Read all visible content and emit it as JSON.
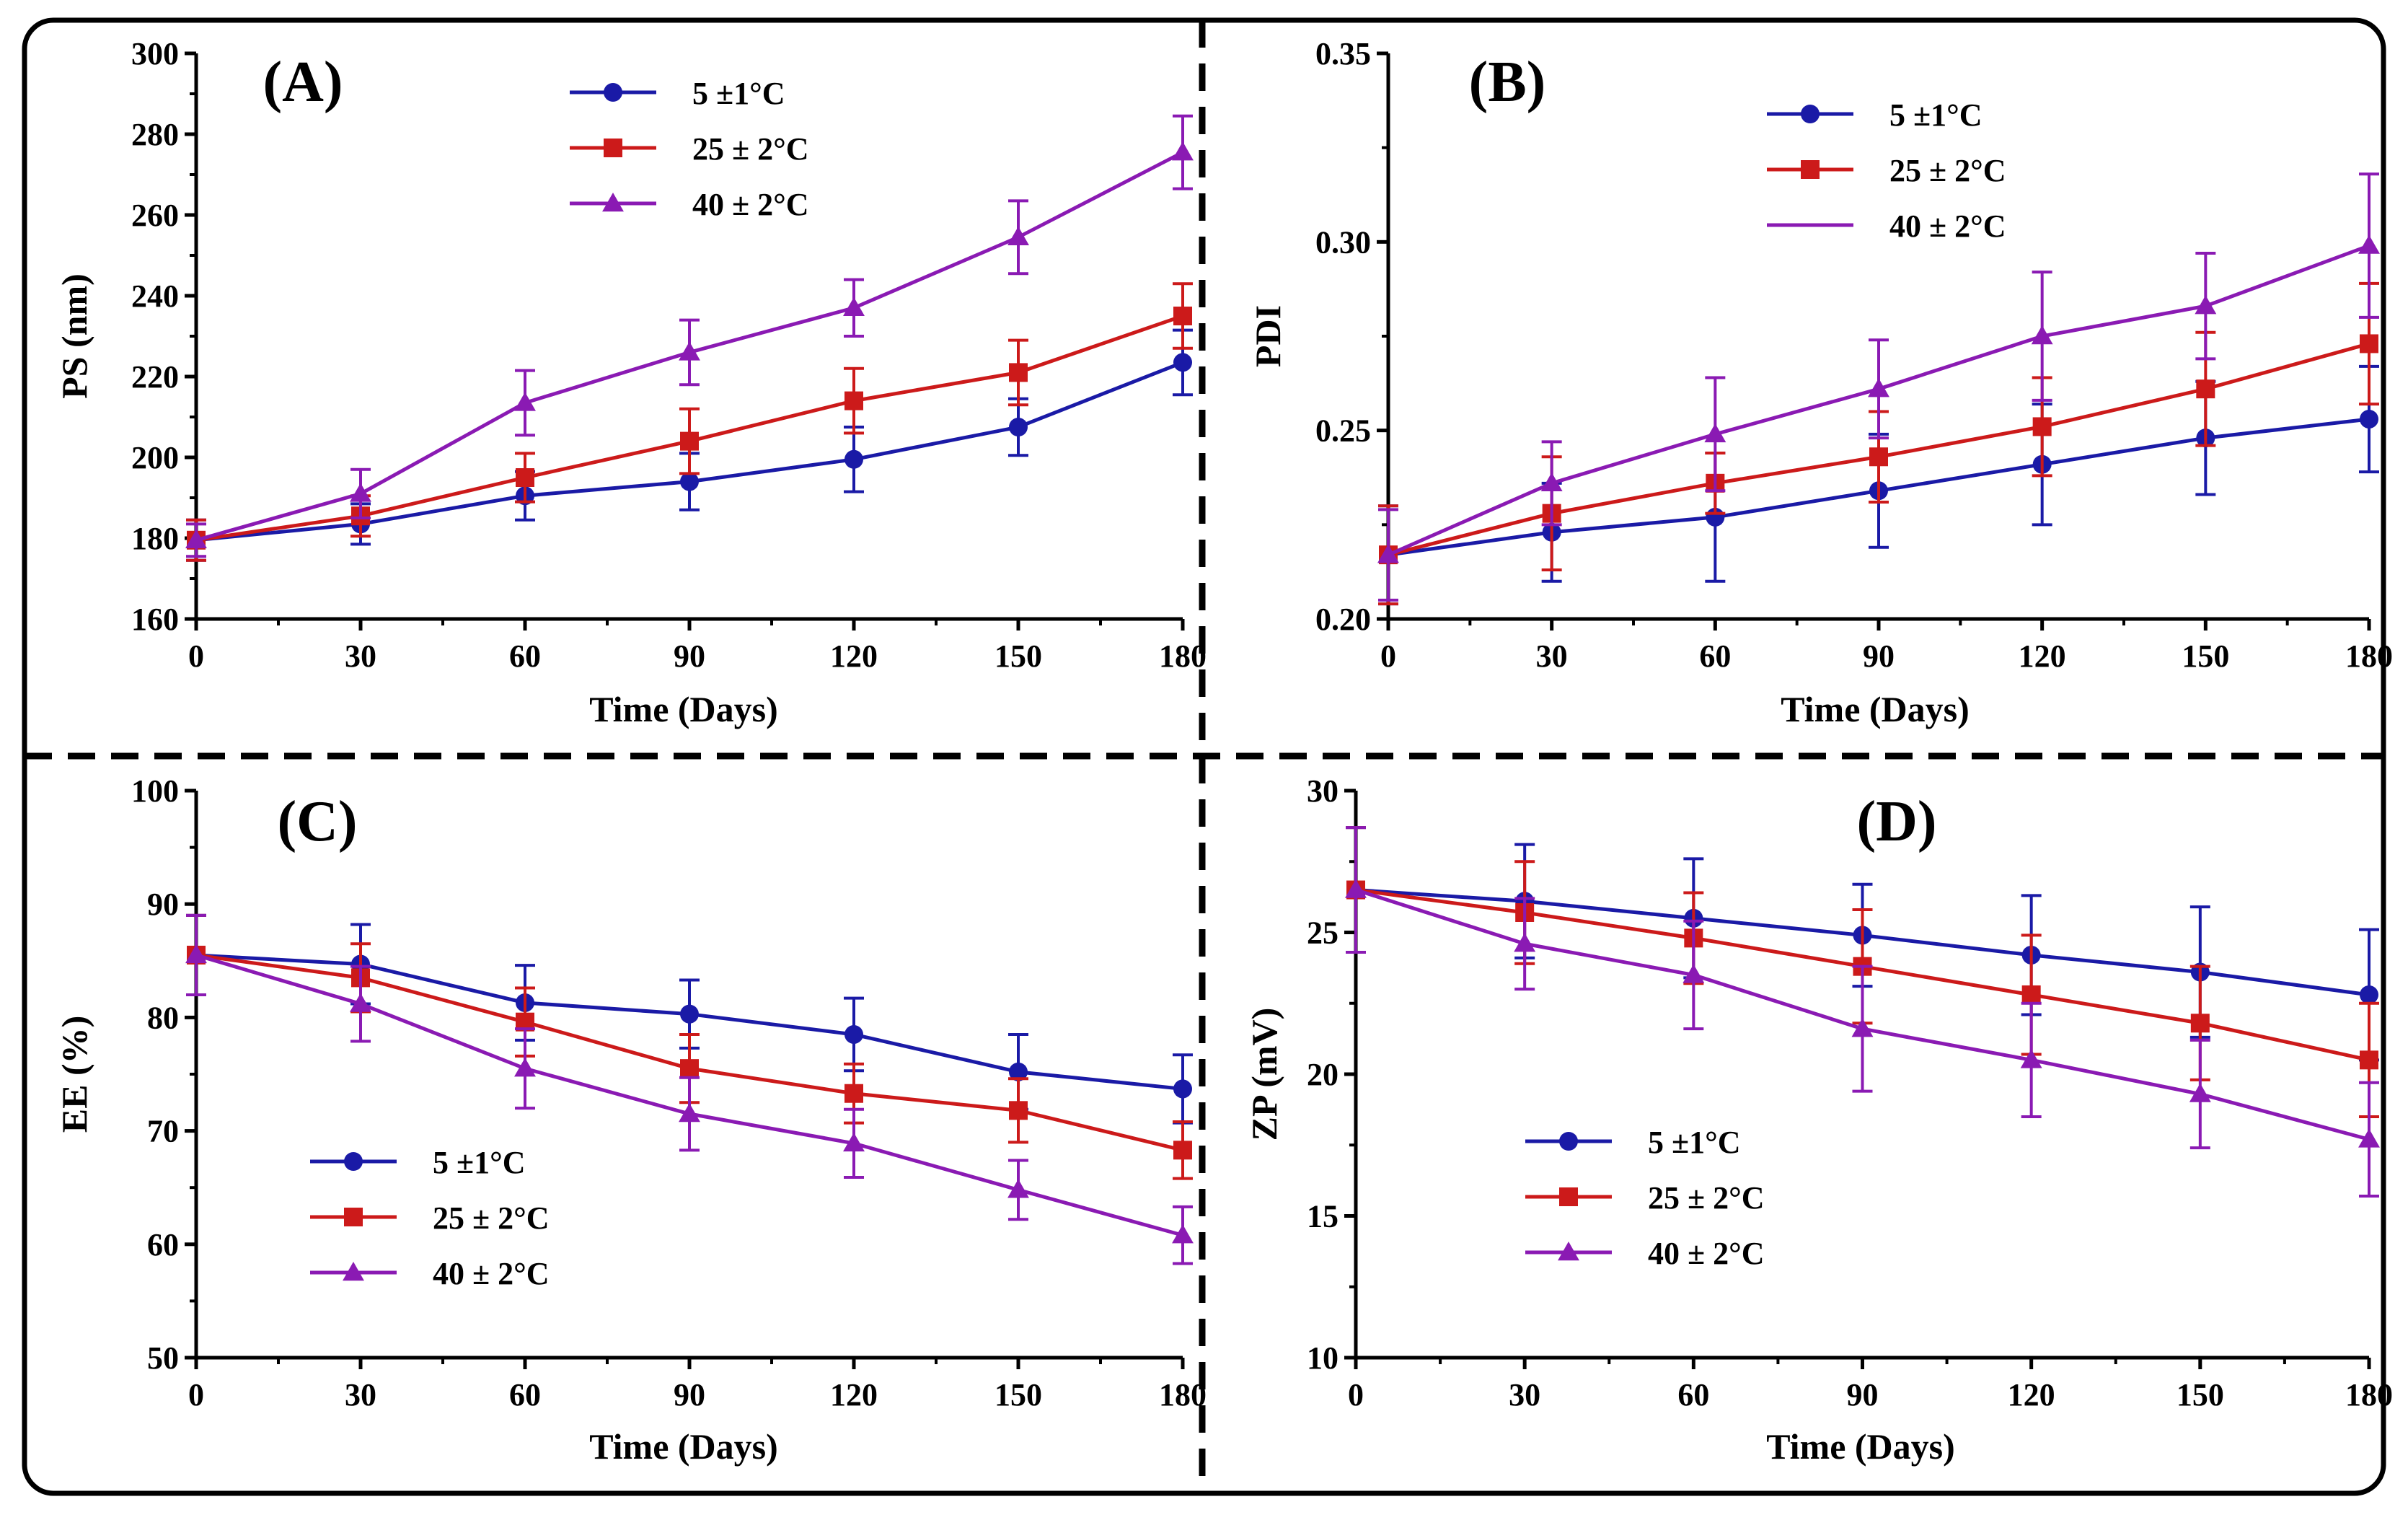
{
  "legend_labels": [
    "5 ±1°C",
    "25 ± 2°C",
    "40 ± 2°C"
  ],
  "colors": {
    "s5": "#1a1aa6",
    "s25": "#cc1a1a",
    "s40": "#8a1ab3",
    "frame": "#000000"
  },
  "chart_data": [
    {
      "type": "line",
      "panel_label": "(A)",
      "xlabel": "Time (Days)",
      "ylabel": "PS (nm)",
      "x": [
        0,
        30,
        60,
        90,
        120,
        150,
        180
      ],
      "xlim": [
        0,
        180
      ],
      "xticks": [
        0,
        30,
        60,
        90,
        120,
        150,
        180
      ],
      "ylim": [
        160,
        300
      ],
      "yticks": [
        160,
        180,
        200,
        220,
        240,
        260,
        280,
        300
      ],
      "legend_position": "top-center",
      "series": [
        {
          "name": "5 ±1°C",
          "marker": "circle",
          "values": [
            179.5,
            183.5,
            190.5,
            194,
            199.5,
            207.5,
            223.5
          ],
          "errors": [
            5,
            5,
            6,
            7,
            8,
            7,
            8
          ]
        },
        {
          "name": "25 ± 2°C",
          "marker": "square",
          "values": [
            179.5,
            185.5,
            195,
            204,
            214,
            221,
            235
          ],
          "errors": [
            5,
            5,
            6,
            8,
            8,
            8,
            8
          ]
        },
        {
          "name": "40 ± 2°C",
          "marker": "triangle",
          "values": [
            179.5,
            191,
            213.5,
            226,
            237,
            254.5,
            275.5
          ],
          "errors": [
            4,
            6,
            8,
            8,
            7,
            9,
            9
          ]
        }
      ]
    },
    {
      "type": "line",
      "panel_label": "(B)",
      "xlabel": "Time (Days)",
      "ylabel": "PDI",
      "x": [
        0,
        30,
        60,
        90,
        120,
        150,
        180
      ],
      "xlim": [
        0,
        180
      ],
      "xticks": [
        0,
        30,
        60,
        90,
        120,
        150,
        180
      ],
      "ylim": [
        0.2,
        0.35
      ],
      "yticks": [
        "0.20",
        "0.25",
        "0.30",
        "0.35"
      ],
      "legend_position": "top-center",
      "series": [
        {
          "name": "5 ±1°C",
          "marker": "circle",
          "values": [
            0.217,
            0.223,
            0.227,
            0.234,
            0.241,
            0.248,
            0.253
          ],
          "errors": [
            0.013,
            0.013,
            0.017,
            0.015,
            0.016,
            0.015,
            0.014
          ]
        },
        {
          "name": "25 ± 2°C",
          "marker": "square",
          "values": [
            0.217,
            0.228,
            0.236,
            0.243,
            0.251,
            0.261,
            0.273
          ],
          "errors": [
            0.013,
            0.015,
            0.008,
            0.012,
            0.013,
            0.015,
            0.016
          ]
        },
        {
          "name": "40 ± 2°C",
          "marker": "triangle",
          "values": [
            0.217,
            0.236,
            0.249,
            0.261,
            0.275,
            0.283,
            0.299
          ],
          "errors": [
            0.012,
            0.011,
            0.015,
            0.013,
            0.017,
            0.014,
            0.019
          ]
        }
      ]
    },
    {
      "type": "line",
      "panel_label": "(C)",
      "xlabel": "Time (Days)",
      "ylabel": "EE (%)",
      "x": [
        0,
        30,
        60,
        90,
        120,
        150,
        180
      ],
      "xlim": [
        0,
        180
      ],
      "xticks": [
        0,
        30,
        60,
        90,
        120,
        150,
        180
      ],
      "ylim": [
        50,
        100
      ],
      "yticks": [
        50,
        60,
        70,
        80,
        90,
        100
      ],
      "legend_position": "bottom-left",
      "series": [
        {
          "name": "5 ±1°C",
          "marker": "circle",
          "values": [
            85.5,
            84.7,
            81.3,
            80.3,
            78.5,
            75.2,
            73.7
          ],
          "errors": [
            3.5,
            3.5,
            3.3,
            3,
            3.2,
            3.3,
            3
          ]
        },
        {
          "name": "25 ± 2°C",
          "marker": "square",
          "values": [
            85.5,
            83.5,
            79.6,
            75.5,
            73.3,
            71.8,
            68.3
          ],
          "errors": [
            3.5,
            3,
            3,
            3,
            2.6,
            2.8,
            2.5
          ]
        },
        {
          "name": "40 ± 2°C",
          "marker": "triangle",
          "values": [
            85.5,
            81.2,
            75.5,
            71.5,
            68.9,
            64.8,
            60.8
          ],
          "errors": [
            3.5,
            3.3,
            3.5,
            3.2,
            3,
            2.6,
            2.5
          ]
        }
      ]
    },
    {
      "type": "line",
      "panel_label": "(D)",
      "xlabel": "Time (Days)",
      "ylabel": "ZP (mV)",
      "x": [
        0,
        30,
        60,
        90,
        120,
        150,
        180
      ],
      "xlim": [
        0,
        180
      ],
      "xticks": [
        0,
        30,
        60,
        90,
        120,
        150,
        180
      ],
      "ylim": [
        10,
        30
      ],
      "yticks": [
        10,
        15,
        20,
        25,
        30
      ],
      "legend_position": "bottom-left",
      "series": [
        {
          "name": "5 ±1°C",
          "marker": "circle",
          "values": [
            26.5,
            26.1,
            25.5,
            24.9,
            24.2,
            23.6,
            22.8
          ],
          "errors": [
            2.2,
            2,
            2.1,
            1.8,
            2.1,
            2.3,
            2.3
          ]
        },
        {
          "name": "25 ± 2°C",
          "marker": "square",
          "values": [
            26.5,
            25.7,
            24.8,
            23.8,
            22.8,
            21.8,
            20.5
          ],
          "errors": [
            2.2,
            1.8,
            1.6,
            2,
            2.1,
            2,
            2
          ]
        },
        {
          "name": "40 ± 2°C",
          "marker": "triangle",
          "values": [
            26.5,
            24.6,
            23.5,
            21.6,
            20.5,
            19.3,
            17.7
          ],
          "errors": [
            2.2,
            1.6,
            1.9,
            2.2,
            2,
            1.9,
            2
          ]
        }
      ]
    }
  ]
}
